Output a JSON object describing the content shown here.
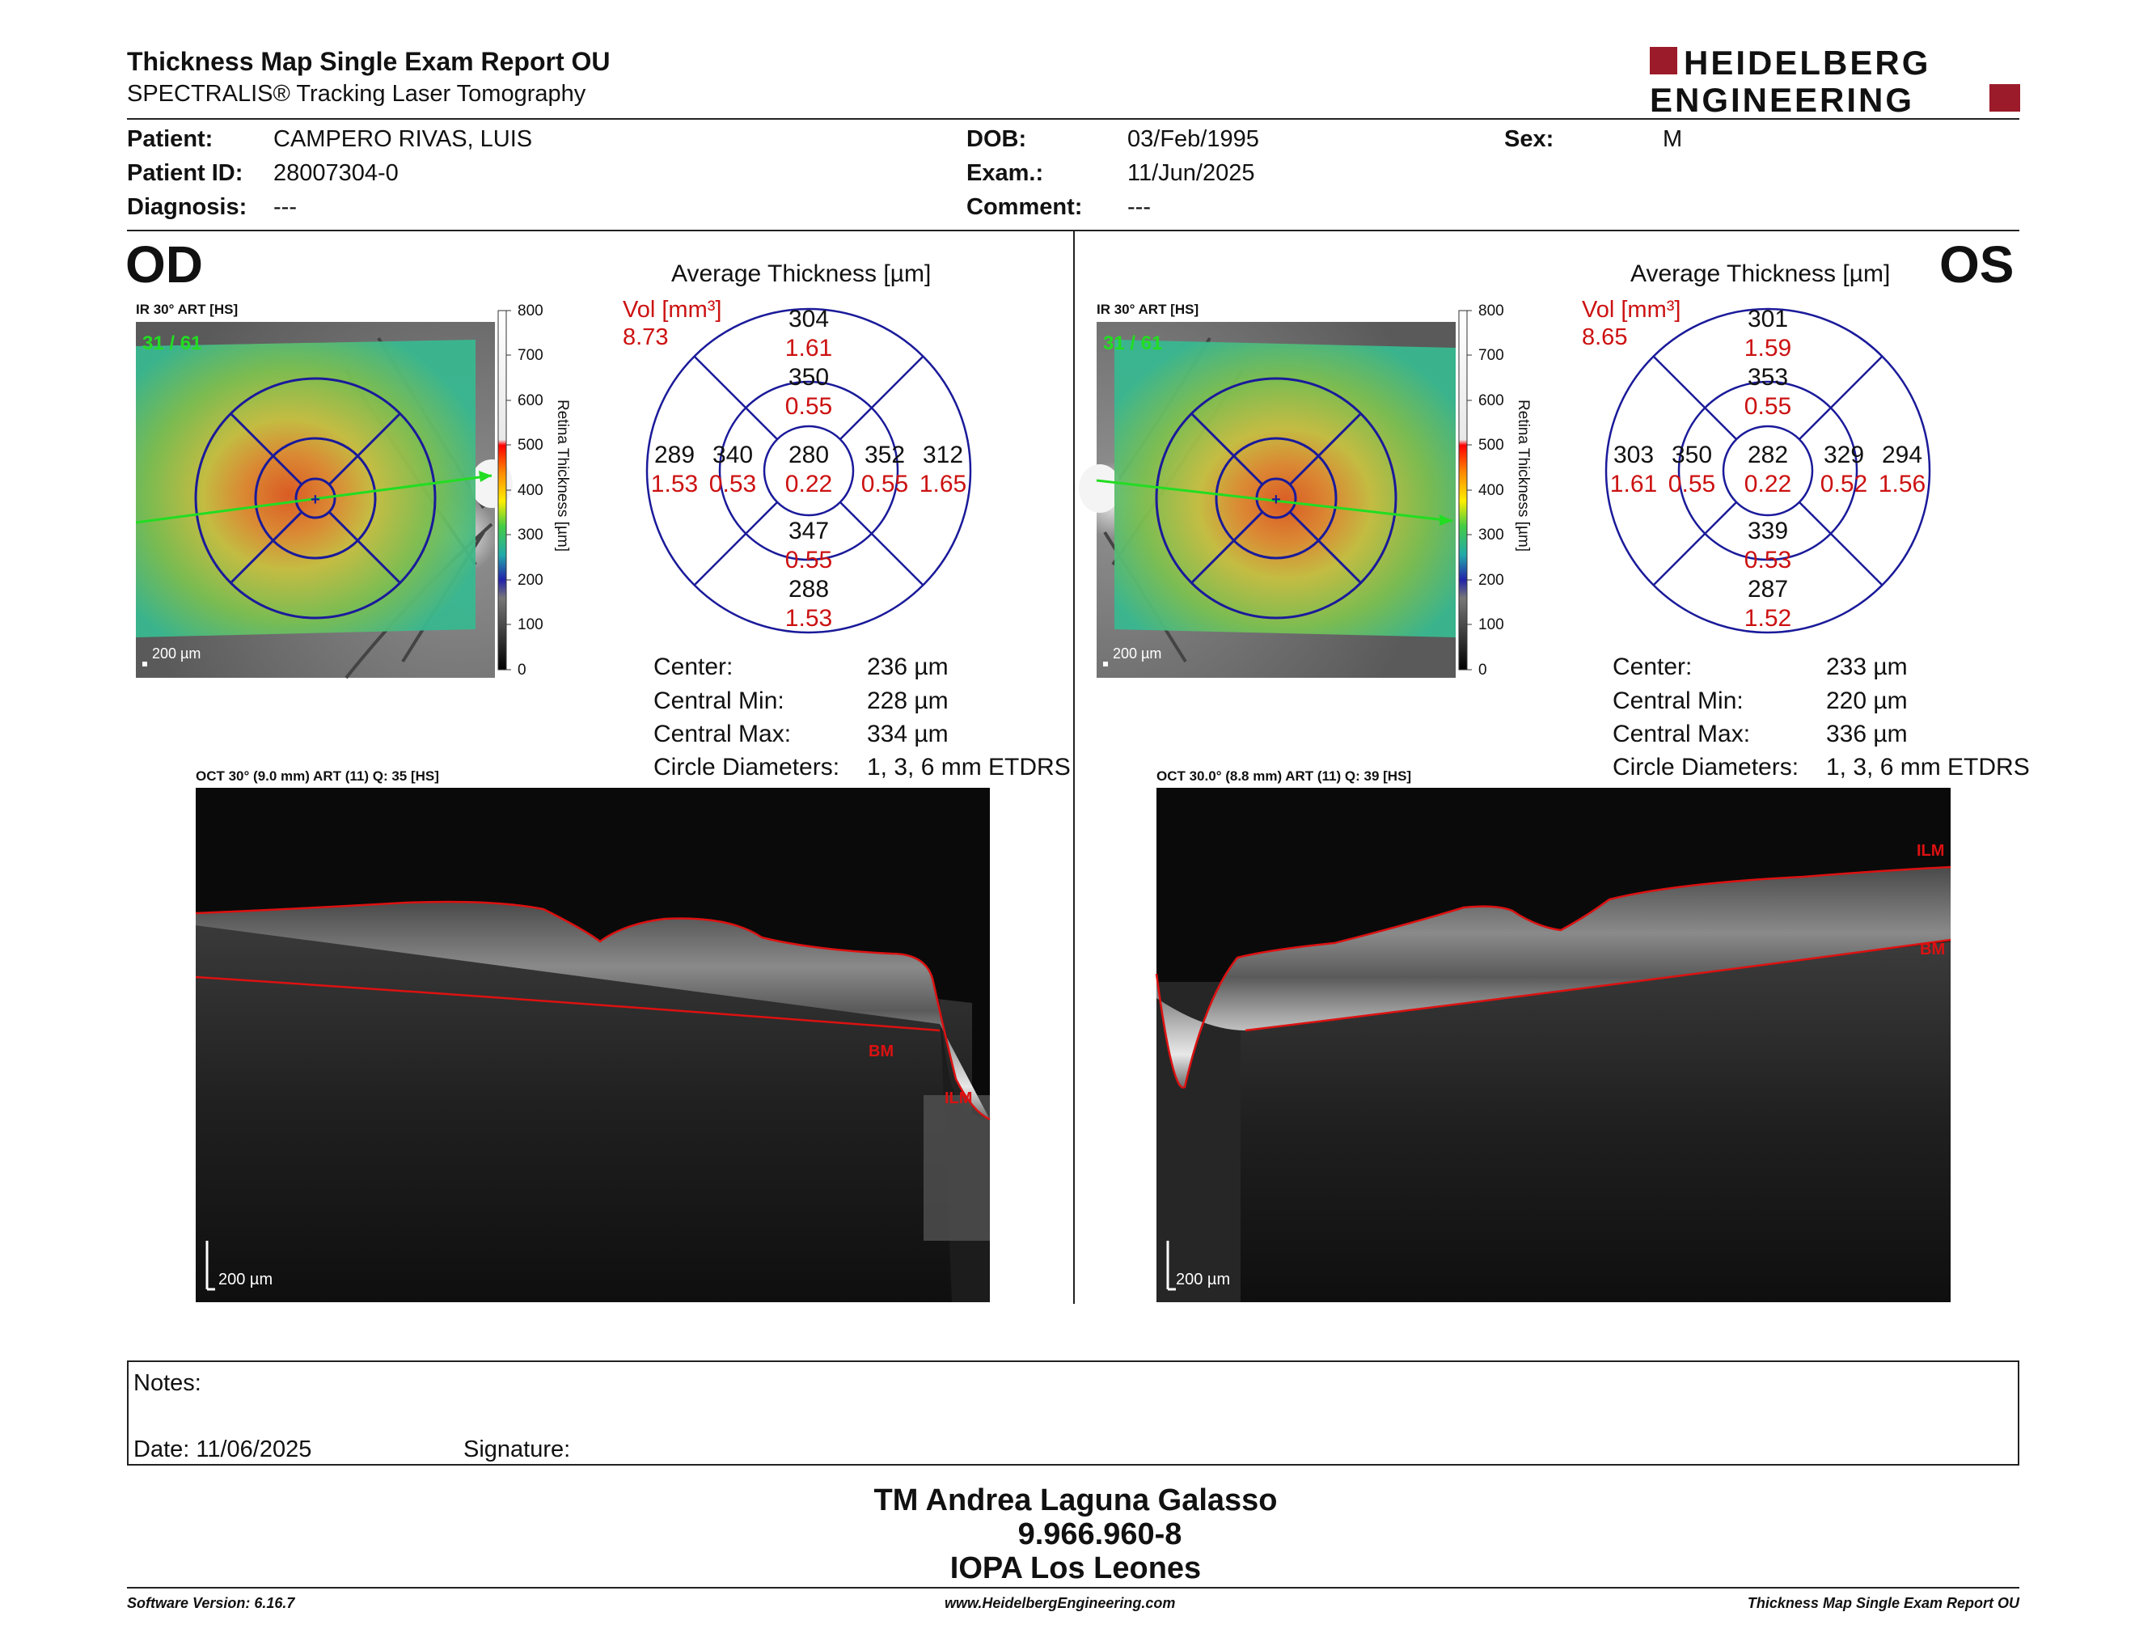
{
  "header": {
    "title": "Thickness Map Single Exam Report OU",
    "subtitle": "SPECTRALIS® Tracking Laser Tomography",
    "logo_line1": "HEIDELBERG",
    "logo_line2": "ENGINEERING"
  },
  "patient": {
    "patient_label": "Patient:",
    "patient_value": "CAMPERO RIVAS, LUIS",
    "id_label": "Patient ID:",
    "id_value": "28007304-0",
    "diagnosis_label": "Diagnosis:",
    "diagnosis_value": "---",
    "dob_label": "DOB:",
    "dob_value": "03/Feb/1995",
    "exam_label": "Exam.:",
    "exam_value": "11/Jun/2025",
    "comment_label": "Comment:",
    "comment_value": "---",
    "sex_label": "Sex:",
    "sex_value": "M"
  },
  "od": {
    "eye_label": "OD",
    "ir_label": "IR 30° ART [HS]",
    "ir_counter": "31 / 61",
    "ir_scale": "200 µm",
    "scale_ticks": [
      "800",
      "700",
      "600",
      "500",
      "400",
      "300",
      "200",
      "100",
      "0"
    ],
    "scale_title": "Retina Thickness [µm]",
    "avg_title": "Average Thickness [µm]",
    "vol_label": "Vol [mm³]",
    "vol_value": "8.73",
    "grid": {
      "outer_top": [
        "304",
        "1.61"
      ],
      "inner_top": [
        "350",
        "0.55"
      ],
      "outer_left": [
        "289",
        "1.53"
      ],
      "inner_left": [
        "340",
        "0.53"
      ],
      "center": [
        "280",
        "0.22"
      ],
      "inner_right": [
        "352",
        "0.55"
      ],
      "outer_right": [
        "312",
        "1.65"
      ],
      "inner_bottom": [
        "347",
        "0.55"
      ],
      "outer_bottom": [
        "288",
        "1.53"
      ]
    },
    "stats": {
      "center_label": "Center:",
      "center_value": "236 µm",
      "min_label": "Central Min:",
      "min_value": "228 µm",
      "max_label": "Central Max:",
      "max_value": "334 µm",
      "diam_label": "Circle Diameters:",
      "diam_value": "1, 3, 6 mm ETDRS"
    },
    "oct_label": "OCT 30° (9.0 mm) ART (11) Q: 35 [HS]",
    "oct_scale": "200 µm",
    "bm_label": "BM",
    "ilm_label": "ILM"
  },
  "os": {
    "eye_label": "OS",
    "ir_label": "IR 30° ART [HS]",
    "ir_counter": "31 / 61",
    "ir_scale": "200 µm",
    "scale_ticks": [
      "800",
      "700",
      "600",
      "500",
      "400",
      "300",
      "200",
      "100",
      "0"
    ],
    "scale_title": "Retina Thickness [µm]",
    "avg_title": "Average Thickness [µm]",
    "vol_label": "Vol [mm³]",
    "vol_value": "8.65",
    "grid": {
      "outer_top": [
        "301",
        "1.59"
      ],
      "inner_top": [
        "353",
        "0.55"
      ],
      "outer_left": [
        "303",
        "1.61"
      ],
      "inner_left": [
        "350",
        "0.55"
      ],
      "center": [
        "282",
        "0.22"
      ],
      "inner_right": [
        "329",
        "0.52"
      ],
      "outer_right": [
        "294",
        "1.56"
      ],
      "inner_bottom": [
        "339",
        "0.53"
      ],
      "outer_bottom": [
        "287",
        "1.52"
      ]
    },
    "stats": {
      "center_label": "Center:",
      "center_value": "233 µm",
      "min_label": "Central Min:",
      "min_value": "220 µm",
      "max_label": "Central Max:",
      "max_value": "336 µm",
      "diam_label": "Circle Diameters:",
      "diam_value": "1, 3, 6 mm ETDRS"
    },
    "oct_label": "OCT 30.0° (8.8 mm) ART (11) Q: 39 [HS]",
    "oct_scale": "200 µm",
    "bm_label": "BM",
    "ilm_label": "ILM"
  },
  "notes": {
    "notes_label": "Notes:",
    "date_label": "Date: 11/06/2025",
    "signature_label": "Signature:"
  },
  "signatory": {
    "name": "TM Andrea Laguna Galasso",
    "id": "9.966.960-8",
    "institution": "IOPA Los Leones"
  },
  "footer": {
    "software": "Software Version: 6.16.7",
    "website": "www.HeidelbergEngineering.com",
    "report": "Thickness Map Single Exam Report OU"
  },
  "colors": {
    "red_values": "#cc1111",
    "grid_blue": "#1a1a9a",
    "logo_red": "#9b1b2a"
  }
}
